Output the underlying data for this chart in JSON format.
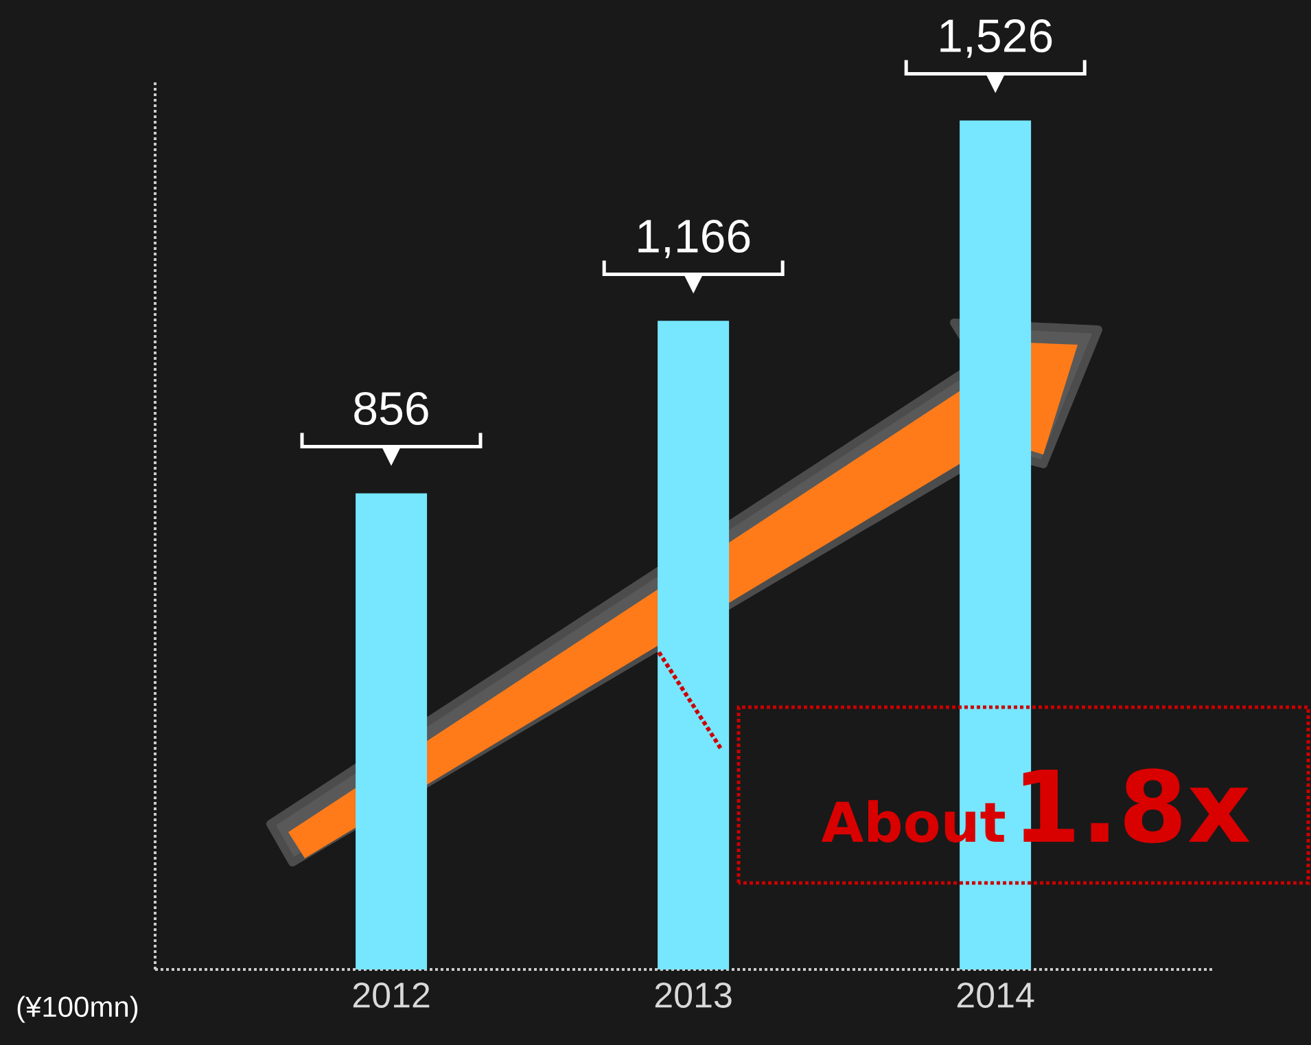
{
  "chart_data": {
    "type": "bar",
    "categories": [
      "2012",
      "2013",
      "2014"
    ],
    "values": [
      856,
      1166,
      1526
    ],
    "value_labels": [
      "856",
      "1,166",
      "1,526"
    ],
    "color": "#77e6ff",
    "annotations": [
      "(¥100mn)",
      "About",
      "1.8x"
    ]
  }
}
